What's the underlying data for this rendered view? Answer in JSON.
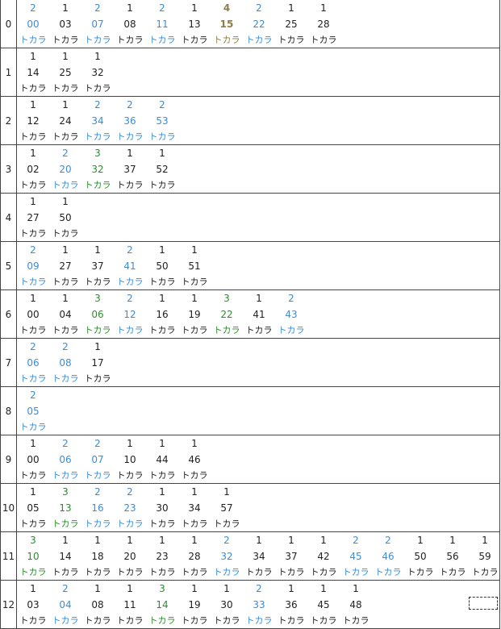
{
  "label": "トカラ",
  "colors": {
    "1": "#222222",
    "2": "#3a8ed6",
    "3": "#2e8b2e",
    "4": "#8f7d47"
  },
  "rows": [
    {
      "hour": "0",
      "entries": [
        {
          "count": "2",
          "minute": "00"
        },
        {
          "count": "1",
          "minute": "03"
        },
        {
          "count": "2",
          "minute": "07"
        },
        {
          "count": "1",
          "minute": "08"
        },
        {
          "count": "2",
          "minute": "11"
        },
        {
          "count": "1",
          "minute": "13"
        },
        {
          "count": "4",
          "minute": "15"
        },
        {
          "count": "2",
          "minute": "22"
        },
        {
          "count": "1",
          "minute": "25"
        },
        {
          "count": "1",
          "minute": "28"
        }
      ]
    },
    {
      "hour": "1",
      "entries": [
        {
          "count": "1",
          "minute": "14"
        },
        {
          "count": "1",
          "minute": "25"
        },
        {
          "count": "1",
          "minute": "32"
        }
      ]
    },
    {
      "hour": "2",
      "entries": [
        {
          "count": "1",
          "minute": "12"
        },
        {
          "count": "1",
          "minute": "24"
        },
        {
          "count": "2",
          "minute": "34"
        },
        {
          "count": "2",
          "minute": "36"
        },
        {
          "count": "2",
          "minute": "53"
        }
      ]
    },
    {
      "hour": "3",
      "entries": [
        {
          "count": "1",
          "minute": "02"
        },
        {
          "count": "2",
          "minute": "20"
        },
        {
          "count": "3",
          "minute": "32"
        },
        {
          "count": "1",
          "minute": "37"
        },
        {
          "count": "1",
          "minute": "52"
        }
      ]
    },
    {
      "hour": "4",
      "entries": [
        {
          "count": "1",
          "minute": "27"
        },
        {
          "count": "1",
          "minute": "50"
        }
      ]
    },
    {
      "hour": "5",
      "entries": [
        {
          "count": "2",
          "minute": "09"
        },
        {
          "count": "1",
          "minute": "27"
        },
        {
          "count": "1",
          "minute": "37"
        },
        {
          "count": "2",
          "minute": "41"
        },
        {
          "count": "1",
          "minute": "50"
        },
        {
          "count": "1",
          "minute": "51"
        }
      ]
    },
    {
      "hour": "6",
      "entries": [
        {
          "count": "1",
          "minute": "00"
        },
        {
          "count": "1",
          "minute": "04"
        },
        {
          "count": "3",
          "minute": "06"
        },
        {
          "count": "2",
          "minute": "12"
        },
        {
          "count": "1",
          "minute": "16"
        },
        {
          "count": "1",
          "minute": "19"
        },
        {
          "count": "3",
          "minute": "22"
        },
        {
          "count": "1",
          "minute": "41"
        },
        {
          "count": "2",
          "minute": "43"
        }
      ]
    },
    {
      "hour": "7",
      "entries": [
        {
          "count": "2",
          "minute": "06"
        },
        {
          "count": "2",
          "minute": "08"
        },
        {
          "count": "1",
          "minute": "17"
        }
      ]
    },
    {
      "hour": "8",
      "entries": [
        {
          "count": "2",
          "minute": "05"
        }
      ]
    },
    {
      "hour": "9",
      "entries": [
        {
          "count": "1",
          "minute": "00"
        },
        {
          "count": "2",
          "minute": "06"
        },
        {
          "count": "2",
          "minute": "07"
        },
        {
          "count": "1",
          "minute": "10"
        },
        {
          "count": "1",
          "minute": "44"
        },
        {
          "count": "1",
          "minute": "46"
        }
      ]
    },
    {
      "hour": "10",
      "entries": [
        {
          "count": "1",
          "minute": "05"
        },
        {
          "count": "3",
          "minute": "13"
        },
        {
          "count": "2",
          "minute": "16"
        },
        {
          "count": "2",
          "minute": "23"
        },
        {
          "count": "1",
          "minute": "30"
        },
        {
          "count": "1",
          "minute": "34"
        },
        {
          "count": "1",
          "minute": "57"
        }
      ]
    },
    {
      "hour": "11",
      "entries": [
        {
          "count": "3",
          "minute": "10"
        },
        {
          "count": "1",
          "minute": "14"
        },
        {
          "count": "1",
          "minute": "18"
        },
        {
          "count": "1",
          "minute": "20"
        },
        {
          "count": "1",
          "minute": "23"
        },
        {
          "count": "1",
          "minute": "28"
        },
        {
          "count": "2",
          "minute": "32"
        },
        {
          "count": "1",
          "minute": "34"
        },
        {
          "count": "1",
          "minute": "37"
        },
        {
          "count": "1",
          "minute": "42"
        },
        {
          "count": "2",
          "minute": "45"
        },
        {
          "count": "2",
          "minute": "46"
        },
        {
          "count": "1",
          "minute": "50"
        },
        {
          "count": "1",
          "minute": "56"
        },
        {
          "count": "1",
          "minute": "59"
        }
      ]
    },
    {
      "hour": "12",
      "entries": [
        {
          "count": "1",
          "minute": "03"
        },
        {
          "count": "2",
          "minute": "04"
        },
        {
          "count": "1",
          "minute": "08"
        },
        {
          "count": "1",
          "minute": "11"
        },
        {
          "count": "3",
          "minute": "14"
        },
        {
          "count": "1",
          "minute": "19"
        },
        {
          "count": "1",
          "minute": "30"
        },
        {
          "count": "2",
          "minute": "33"
        },
        {
          "count": "1",
          "minute": "36"
        },
        {
          "count": "1",
          "minute": "45"
        },
        {
          "count": "1",
          "minute": "48"
        }
      ]
    }
  ]
}
